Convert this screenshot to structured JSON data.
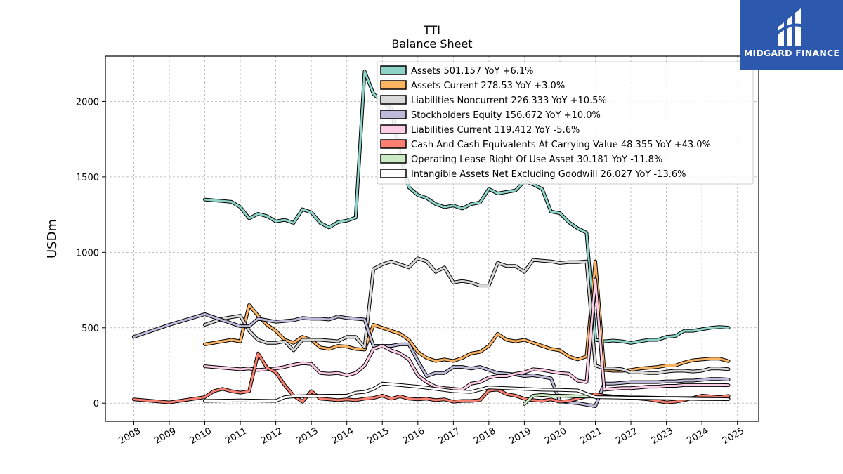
{
  "brand": {
    "name": "MIDGARD FINANCE",
    "bg_color": "#2c59ad"
  },
  "chart_data": {
    "type": "line",
    "title": "TTI",
    "subtitle": "Balance  Sheet",
    "xlabel": "",
    "ylabel": "USDm",
    "xlim": [
      2007.2,
      2025.6
    ],
    "ylim": [
      -120,
      2300
    ],
    "x_ticks": [
      2008,
      2009,
      2010,
      2011,
      2012,
      2013,
      2014,
      2015,
      2016,
      2017,
      2018,
      2019,
      2020,
      2021,
      2022,
      2023,
      2024,
      2025
    ],
    "y_ticks": [
      0,
      500,
      1000,
      1500,
      2000
    ],
    "grid": true,
    "legend_position": "top-right",
    "series": [
      {
        "name": "Assets",
        "legend_label": "Assets  501.157 YoY +6.1%",
        "color": "#8dd3c7",
        "x": [
          2010.0,
          2010.25,
          2010.5,
          2010.75,
          2011.0,
          2011.25,
          2011.5,
          2011.75,
          2012.0,
          2012.25,
          2012.5,
          2012.75,
          2013.0,
          2013.25,
          2013.5,
          2013.75,
          2014.0,
          2014.25,
          2014.5,
          2014.75,
          2015.0,
          2015.25,
          2015.5,
          2015.75,
          2016.0,
          2016.25,
          2016.5,
          2016.75,
          2017.0,
          2017.25,
          2017.5,
          2017.75,
          2018.0,
          2018.25,
          2018.5,
          2018.75,
          2019.0,
          2019.25,
          2019.5,
          2019.75,
          2020.0,
          2020.25,
          2020.5,
          2020.75,
          2021.0,
          2021.25,
          2021.5,
          2021.75,
          2022.0,
          2022.25,
          2022.5,
          2022.75,
          2023.0,
          2023.25,
          2023.5,
          2023.75,
          2024.0,
          2024.25,
          2024.5,
          2024.75
        ],
        "y": [
          1350,
          1345,
          1340,
          1335,
          1300,
          1225,
          1255,
          1240,
          1205,
          1215,
          1195,
          1285,
          1265,
          1195,
          1165,
          1200,
          1210,
          1230,
          2200,
          2050,
          2000,
          1950,
          1650,
          1430,
          1380,
          1360,
          1320,
          1300,
          1310,
          1290,
          1320,
          1330,
          1420,
          1390,
          1400,
          1410,
          1470,
          1450,
          1420,
          1270,
          1260,
          1200,
          1160,
          1130,
          420,
          410,
          415,
          410,
          400,
          410,
          420,
          420,
          440,
          445,
          480,
          480,
          490,
          500,
          505,
          501
        ]
      },
      {
        "name": "Assets Current",
        "legend_label": "Assets Current  278.53 YoY +3.0%",
        "color": "#fdb462",
        "x": [
          2010.0,
          2010.25,
          2010.5,
          2010.75,
          2011.0,
          2011.25,
          2011.5,
          2011.75,
          2012.0,
          2012.25,
          2012.5,
          2012.75,
          2013.0,
          2013.25,
          2013.5,
          2013.75,
          2014.0,
          2014.25,
          2014.5,
          2014.75,
          2015.0,
          2015.25,
          2015.5,
          2015.75,
          2016.0,
          2016.25,
          2016.5,
          2016.75,
          2017.0,
          2017.25,
          2017.5,
          2017.75,
          2018.0,
          2018.25,
          2018.5,
          2018.75,
          2019.0,
          2019.25,
          2019.5,
          2019.75,
          2020.0,
          2020.25,
          2020.5,
          2020.75,
          2021.0,
          2021.25,
          2021.5,
          2021.75,
          2022.0,
          2022.25,
          2022.5,
          2022.75,
          2023.0,
          2023.25,
          2023.5,
          2023.75,
          2024.0,
          2024.25,
          2024.5,
          2024.75
        ],
        "y": [
          390,
          400,
          410,
          420,
          410,
          650,
          580,
          520,
          480,
          420,
          400,
          440,
          420,
          370,
          360,
          380,
          375,
          360,
          355,
          520,
          500,
          480,
          460,
          420,
          340,
          300,
          280,
          290,
          280,
          300,
          330,
          340,
          380,
          460,
          420,
          410,
          420,
          400,
          380,
          360,
          350,
          310,
          290,
          310,
          940,
          220,
          215,
          215,
          220,
          230,
          235,
          240,
          250,
          250,
          270,
          285,
          290,
          295,
          295,
          279
        ]
      },
      {
        "name": "Liabilities Noncurrent",
        "legend_label": "Liabilities Noncurrent  226.333 YoY +10.5%",
        "color": "#d9d9d9",
        "x": [
          2010.0,
          2010.25,
          2010.5,
          2010.75,
          2011.0,
          2011.25,
          2011.5,
          2011.75,
          2012.0,
          2012.25,
          2012.5,
          2012.75,
          2013.0,
          2013.25,
          2013.5,
          2013.75,
          2014.0,
          2014.25,
          2014.5,
          2014.75,
          2015.0,
          2015.25,
          2015.5,
          2015.75,
          2016.0,
          2016.25,
          2016.5,
          2016.75,
          2017.0,
          2017.25,
          2017.5,
          2017.75,
          2018.0,
          2018.25,
          2018.5,
          2018.75,
          2019.0,
          2019.25,
          2019.5,
          2019.75,
          2020.0,
          2020.25,
          2020.5,
          2020.75,
          2021.0,
          2021.25,
          2021.5,
          2021.75,
          2022.0,
          2022.25,
          2022.5,
          2022.75,
          2023.0,
          2023.25,
          2023.5,
          2023.75,
          2024.0,
          2024.25,
          2024.5,
          2024.75
        ],
        "y": [
          520,
          540,
          560,
          570,
          580,
          480,
          420,
          400,
          400,
          410,
          350,
          420,
          420,
          420,
          415,
          410,
          440,
          440,
          370,
          890,
          920,
          940,
          920,
          900,
          960,
          940,
          870,
          900,
          800,
          810,
          800,
          780,
          780,
          930,
          910,
          910,
          870,
          950,
          945,
          940,
          930,
          935,
          935,
          940,
          250,
          230,
          230,
          225,
          205,
          205,
          200,
          200,
          210,
          215,
          215,
          210,
          215,
          230,
          230,
          226
        ]
      },
      {
        "name": "Stockholders Equity",
        "legend_label": "Stockholders Equity  156.672 YoY +10.0%",
        "color": "#bebada",
        "x": [
          2008.0,
          2009.0,
          2010.0,
          2010.5,
          2011.0,
          2011.25,
          2011.5,
          2011.75,
          2012.0,
          2012.25,
          2012.5,
          2012.75,
          2013.0,
          2013.25,
          2013.5,
          2013.75,
          2014.0,
          2014.25,
          2014.5,
          2014.75,
          2015.0,
          2015.25,
          2015.5,
          2015.75,
          2016.0,
          2016.25,
          2016.5,
          2016.75,
          2017.0,
          2017.25,
          2017.5,
          2017.75,
          2018.0,
          2018.25,
          2018.5,
          2018.75,
          2019.0,
          2019.25,
          2019.5,
          2019.75,
          2020.0,
          2020.25,
          2020.5,
          2020.75,
          2021.0,
          2021.25,
          2021.5,
          2021.75,
          2022.0,
          2022.25,
          2022.5,
          2022.75,
          2023.0,
          2023.25,
          2023.5,
          2023.75,
          2024.0,
          2024.25,
          2024.5,
          2024.75
        ],
        "y": [
          440,
          520,
          590,
          550,
          510,
          510,
          560,
          550,
          540,
          545,
          550,
          565,
          560,
          560,
          555,
          575,
          565,
          560,
          555,
          380,
          380,
          380,
          390,
          390,
          280,
          180,
          200,
          200,
          240,
          240,
          230,
          240,
          220,
          200,
          195,
          190,
          180,
          185,
          175,
          165,
          15,
          5,
          0,
          -10,
          -20,
          130,
          130,
          135,
          140,
          140,
          140,
          140,
          145,
          145,
          150,
          150,
          155,
          160,
          160,
          157
        ]
      },
      {
        "name": "Liabilities Current",
        "legend_label": "Liabilities Current  119.412 YoY -5.6%",
        "color": "#fccde5",
        "x": [
          2010.0,
          2010.5,
          2011.0,
          2011.25,
          2011.5,
          2011.75,
          2012.0,
          2012.25,
          2012.5,
          2012.75,
          2013.0,
          2013.25,
          2013.5,
          2013.75,
          2014.0,
          2014.25,
          2014.5,
          2014.75,
          2015.0,
          2015.25,
          2015.5,
          2015.75,
          2016.0,
          2016.25,
          2016.5,
          2016.75,
          2017.0,
          2017.25,
          2017.5,
          2017.75,
          2018.0,
          2018.25,
          2018.5,
          2018.75,
          2019.0,
          2019.25,
          2019.5,
          2019.75,
          2020.0,
          2020.25,
          2020.5,
          2020.75,
          2021.0,
          2021.25,
          2021.5,
          2021.75,
          2022.0,
          2022.25,
          2022.5,
          2022.75,
          2023.0,
          2023.25,
          2023.5,
          2023.75,
          2024.0,
          2024.25,
          2024.5,
          2024.75
        ],
        "y": [
          245,
          235,
          225,
          230,
          220,
          225,
          230,
          240,
          255,
          265,
          260,
          200,
          195,
          200,
          185,
          200,
          250,
          360,
          380,
          350,
          330,
          290,
          185,
          140,
          110,
          100,
          95,
          90,
          130,
          140,
          170,
          180,
          180,
          195,
          205,
          225,
          220,
          210,
          200,
          195,
          150,
          140,
          820,
          90,
          95,
          100,
          100,
          105,
          110,
          110,
          115,
          115,
          120,
          120,
          120,
          120,
          120,
          119
        ]
      },
      {
        "name": "Cash And Cash Equivalents At Carrying Value",
        "legend_label": "Cash And Cash Equivalents At Carrying Value  48.355 YoY +43.0%",
        "color": "#fb8072",
        "x": [
          2008.0,
          2009.0,
          2010.0,
          2010.25,
          2010.5,
          2010.75,
          2011.0,
          2011.25,
          2011.5,
          2011.75,
          2012.0,
          2012.25,
          2012.5,
          2012.75,
          2013.0,
          2013.25,
          2013.5,
          2013.75,
          2014.0,
          2014.25,
          2014.5,
          2014.75,
          2015.0,
          2015.25,
          2015.5,
          2015.75,
          2016.0,
          2016.25,
          2016.5,
          2016.75,
          2017.0,
          2017.25,
          2017.5,
          2017.75,
          2018.0,
          2018.25,
          2018.5,
          2018.75,
          2019.0,
          2019.25,
          2019.5,
          2019.75,
          2020.0,
          2020.25,
          2020.5,
          2020.75,
          2021.0,
          2021.25,
          2021.5,
          2021.75,
          2022.0,
          2022.25,
          2022.5,
          2022.75,
          2023.0,
          2023.25,
          2023.5,
          2023.75,
          2024.0,
          2024.25,
          2024.5,
          2024.75
        ],
        "y": [
          25,
          5,
          40,
          80,
          95,
          80,
          70,
          80,
          330,
          235,
          205,
          120,
          50,
          10,
          80,
          30,
          25,
          20,
          25,
          20,
          30,
          35,
          50,
          30,
          45,
          30,
          25,
          30,
          20,
          25,
          10,
          15,
          15,
          20,
          85,
          90,
          60,
          50,
          30,
          20,
          15,
          25,
          10,
          15,
          30,
          45,
          60,
          50,
          45,
          40,
          35,
          30,
          25,
          15,
          5,
          10,
          20,
          35,
          50,
          45,
          40,
          48
        ]
      },
      {
        "name": "Operating Lease Right Of Use Asset",
        "legend_label": "Operating Lease Right Of Use Asset  30.181 YoY -11.8%",
        "color": "#ccebc5",
        "x": [
          2019.0,
          2019.25,
          2019.5,
          2019.75,
          2020.0,
          2020.25,
          2020.5,
          2020.75,
          2021.0,
          2021.25,
          2021.5,
          2021.75,
          2022.0,
          2022.25,
          2022.5,
          2022.75,
          2023.0,
          2023.25,
          2023.5,
          2023.75,
          2024.0,
          2024.25,
          2024.5,
          2024.75
        ],
        "y": [
          -5,
          50,
          55,
          50,
          50,
          48,
          45,
          44,
          45,
          42,
          40,
          40,
          38,
          38,
          37,
          36,
          35,
          35,
          34,
          34,
          33,
          32,
          31,
          30
        ]
      },
      {
        "name": "Intangible Assets Net Excluding Goodwill",
        "legend_label": "Intangible Assets Net Excluding Goodwill  26.027 YoY -13.6%",
        "color": "#ffffff",
        "x": [
          2010.0,
          2011.0,
          2012.0,
          2012.25,
          2012.5,
          2013.0,
          2013.5,
          2014.0,
          2014.25,
          2014.5,
          2014.75,
          2015.0,
          2015.5,
          2016.0,
          2016.5,
          2017.0,
          2017.5,
          2018.0,
          2018.5,
          2019.0,
          2019.5,
          2020.0,
          2020.5,
          2021.0,
          2021.5,
          2022.0,
          2022.5,
          2023.0,
          2023.5,
          2024.0,
          2024.5,
          2024.75
        ],
        "y": [
          15,
          18,
          15,
          40,
          45,
          48,
          50,
          50,
          70,
          75,
          95,
          130,
          120,
          110,
          95,
          80,
          75,
          105,
          100,
          95,
          90,
          88,
          85,
          40,
          38,
          36,
          34,
          32,
          30,
          28,
          27,
          26
        ]
      }
    ]
  }
}
